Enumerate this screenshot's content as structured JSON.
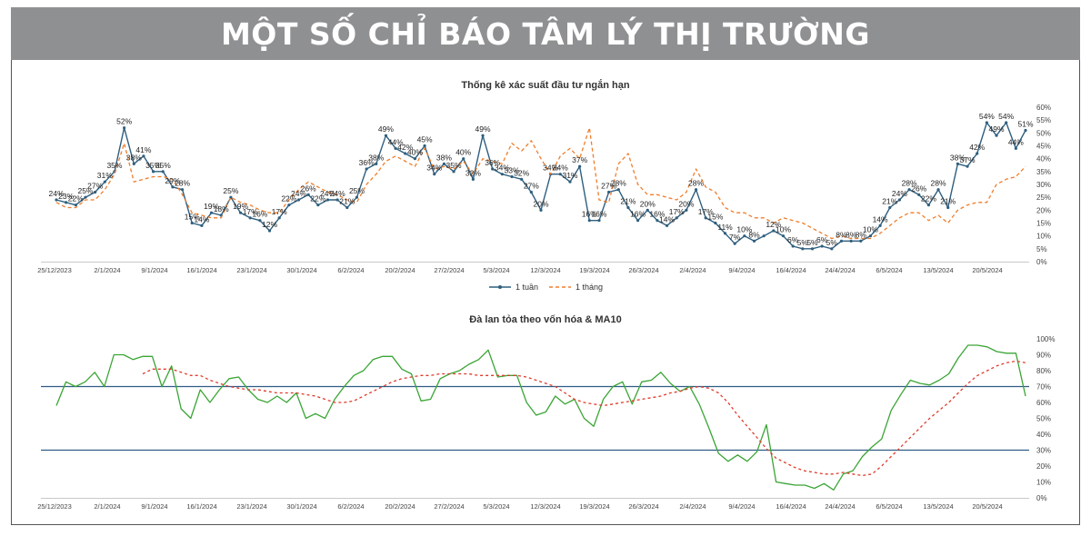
{
  "banner": {
    "title": "MỘT SỐ CHỈ BÁO TÂM LÝ THỊ TRƯỜNG"
  },
  "colors": {
    "banner_bg": "#8f9092",
    "weekly": "#2e5f7f",
    "monthly": "#f07d2a",
    "breadth": "#3aa535",
    "ma10": "#e03a2a",
    "ref_lines": "#2f5c85"
  },
  "chart_data": [
    {
      "type": "line",
      "title": "Thống kê xác suất đầu tư ngắn hạn",
      "x_ticks": [
        "25/12/2023",
        "2/1/2024",
        "9/1/2024",
        "16/1/2024",
        "23/1/2024",
        "30/1/2024",
        "6/2/2024",
        "20/2/2024",
        "27/2/2024",
        "5/3/2024",
        "12/3/2024",
        "19/3/2024",
        "26/3/2024",
        "2/4/2024",
        "9/4/2024",
        "16/4/2024",
        "24/4/2024",
        "6/5/2024",
        "13/5/2024",
        "20/5/2024"
      ],
      "y_ticks": [
        "0%",
        "5%",
        "10%",
        "15%",
        "20%",
        "25%",
        "30%",
        "35%",
        "40%",
        "45%",
        "50%",
        "55%",
        "60%"
      ],
      "ylim": [
        0,
        60
      ],
      "legend": {
        "position": "bottom",
        "weekly": "1 tuần",
        "monthly": "1 tháng"
      },
      "series": [
        {
          "name": "1 tuần",
          "values": [
            24,
            23,
            22,
            25,
            27,
            31,
            35,
            52,
            38,
            41,
            35,
            35,
            29,
            28,
            15,
            14,
            19,
            18,
            25,
            19,
            17,
            16,
            12,
            17,
            22,
            24,
            26,
            22,
            24,
            24,
            21,
            25,
            36,
            38,
            49,
            44,
            42,
            40,
            45,
            34,
            38,
            35,
            40,
            32,
            49,
            36,
            34,
            33,
            32,
            27,
            20,
            34,
            34,
            31,
            37,
            16,
            16,
            27,
            28,
            21,
            16,
            20,
            16,
            14,
            17,
            20,
            28,
            17,
            15,
            11,
            7,
            10,
            8,
            10,
            12,
            10,
            6,
            5,
            5,
            6,
            5,
            8,
            8,
            8,
            10,
            14,
            21,
            24,
            28,
            26,
            22,
            28,
            21,
            38,
            37,
            42,
            54,
            49,
            54,
            44,
            51
          ]
        },
        {
          "name": "1 tháng",
          "values": [
            23,
            21,
            21,
            24,
            24,
            28,
            34,
            46,
            31,
            32,
            33,
            33,
            32,
            26,
            19,
            18,
            17,
            17,
            25,
            23,
            22,
            20,
            19,
            19,
            24,
            28,
            31,
            29,
            27,
            26,
            24,
            23,
            30,
            34,
            39,
            41,
            39,
            37,
            44,
            36,
            37,
            36,
            39,
            34,
            40,
            39,
            38,
            46,
            43,
            47,
            40,
            34,
            41,
            44,
            40,
            52,
            24,
            23,
            38,
            42,
            30,
            26,
            26,
            25,
            24,
            27,
            36,
            29,
            27,
            21,
            19,
            19,
            17,
            17,
            15,
            17,
            16,
            15,
            13,
            11,
            9,
            10,
            9,
            9,
            9,
            11,
            14,
            17,
            19,
            19,
            16,
            18,
            15,
            20,
            22,
            23,
            23,
            30,
            32,
            33,
            37
          ]
        }
      ],
      "data_labels": [
        {
          "i": 0,
          "v": 24,
          "text": "24%"
        },
        {
          "i": 1,
          "v": 23,
          "text": "23%"
        },
        {
          "i": 2,
          "v": 22,
          "text": "22%"
        },
        {
          "i": 3,
          "v": 25,
          "text": "25%"
        },
        {
          "i": 4,
          "v": 27,
          "text": "27%"
        },
        {
          "i": 5,
          "v": 31,
          "text": "31%"
        },
        {
          "i": 6,
          "v": 35,
          "text": "35%"
        },
        {
          "i": 7,
          "v": 52,
          "text": "52%"
        },
        {
          "i": 8,
          "v": 38,
          "text": "38%"
        },
        {
          "i": 9,
          "v": 41,
          "text": "41%"
        },
        {
          "i": 10,
          "v": 35,
          "text": "35%"
        },
        {
          "i": 11,
          "v": 35,
          "text": "35%"
        },
        {
          "i": 12,
          "v": 29,
          "text": "29%"
        },
        {
          "i": 13,
          "v": 28,
          "text": "28%"
        },
        {
          "i": 14,
          "v": 15,
          "text": "15%"
        },
        {
          "i": 15,
          "v": 14,
          "text": "14%"
        },
        {
          "i": 16,
          "v": 19,
          "text": "19%"
        },
        {
          "i": 17,
          "v": 18,
          "text": "18%"
        },
        {
          "i": 18,
          "v": 25,
          "text": "25%"
        },
        {
          "i": 19,
          "v": 19,
          "text": "19%"
        },
        {
          "i": 20,
          "v": 17,
          "text": "17%"
        },
        {
          "i": 21,
          "v": 16,
          "text": "16%"
        },
        {
          "i": 22,
          "v": 12,
          "text": "12%"
        },
        {
          "i": 23,
          "v": 17,
          "text": "17%"
        },
        {
          "i": 24,
          "v": 22,
          "text": "22%"
        },
        {
          "i": 25,
          "v": 24,
          "text": "24%"
        },
        {
          "i": 26,
          "v": 26,
          "text": "26%"
        },
        {
          "i": 27,
          "v": 22,
          "text": "22%"
        },
        {
          "i": 28,
          "v": 24,
          "text": "24%"
        },
        {
          "i": 29,
          "v": 24,
          "text": "24%"
        },
        {
          "i": 30,
          "v": 21,
          "text": "21%"
        },
        {
          "i": 31,
          "v": 25,
          "text": "25%"
        },
        {
          "i": 32,
          "v": 36,
          "text": "36%"
        },
        {
          "i": 33,
          "v": 38,
          "text": "38%"
        },
        {
          "i": 34,
          "v": 49,
          "text": "49%"
        },
        {
          "i": 35,
          "v": 44,
          "text": "44%"
        },
        {
          "i": 36,
          "v": 42,
          "text": "42%"
        },
        {
          "i": 37,
          "v": 40,
          "text": "40%"
        },
        {
          "i": 38,
          "v": 45,
          "text": "45%"
        },
        {
          "i": 39,
          "v": 34,
          "text": "34%"
        },
        {
          "i": 40,
          "v": 38,
          "text": "38%"
        },
        {
          "i": 41,
          "v": 35,
          "text": "35%"
        },
        {
          "i": 42,
          "v": 40,
          "text": "40%"
        },
        {
          "i": 43,
          "v": 32,
          "text": "32%"
        },
        {
          "i": 44,
          "v": 49,
          "text": "49%"
        },
        {
          "i": 45,
          "v": 36,
          "text": "36%"
        },
        {
          "i": 46,
          "v": 34,
          "text": "34%"
        },
        {
          "i": 47,
          "v": 33,
          "text": "33%"
        },
        {
          "i": 48,
          "v": 32,
          "text": "32%"
        },
        {
          "i": 49,
          "v": 27,
          "text": "27%"
        },
        {
          "i": 50,
          "v": 20,
          "text": "20%"
        },
        {
          "i": 51,
          "v": 34,
          "text": "34%"
        },
        {
          "i": 52,
          "v": 34,
          "text": "34%"
        },
        {
          "i": 53,
          "v": 31,
          "text": "31%"
        },
        {
          "i": 54,
          "v": 37,
          "text": "37%"
        },
        {
          "i": 55,
          "v": 16,
          "text": "16%"
        },
        {
          "i": 56,
          "v": 16,
          "text": "16%"
        },
        {
          "i": 57,
          "v": 27,
          "text": "27%"
        },
        {
          "i": 58,
          "v": 28,
          "text": "28%"
        },
        {
          "i": 59,
          "v": 21,
          "text": "21%"
        },
        {
          "i": 60,
          "v": 16,
          "text": "16%"
        },
        {
          "i": 61,
          "v": 20,
          "text": "20%"
        },
        {
          "i": 62,
          "v": 16,
          "text": "16%"
        },
        {
          "i": 63,
          "v": 14,
          "text": "14%"
        },
        {
          "i": 64,
          "v": 17,
          "text": "17%"
        },
        {
          "i": 65,
          "v": 20,
          "text": "20%"
        },
        {
          "i": 66,
          "v": 28,
          "text": "28%"
        },
        {
          "i": 67,
          "v": 17,
          "text": "17%"
        },
        {
          "i": 68,
          "v": 15,
          "text": "15%"
        },
        {
          "i": 69,
          "v": 11,
          "text": "11%"
        },
        {
          "i": 70,
          "v": 7,
          "text": "7%"
        },
        {
          "i": 71,
          "v": 10,
          "text": "10%"
        },
        {
          "i": 72,
          "v": 8,
          "text": "8%"
        },
        {
          "i": 74,
          "v": 12,
          "text": "12%"
        },
        {
          "i": 75,
          "v": 10,
          "text": "10%"
        },
        {
          "i": 76,
          "v": 6,
          "text": "6%"
        },
        {
          "i": 77,
          "v": 5,
          "text": "5%"
        },
        {
          "i": 78,
          "v": 5,
          "text": "5%"
        },
        {
          "i": 79,
          "v": 6,
          "text": "6%"
        },
        {
          "i": 80,
          "v": 5,
          "text": "5%"
        },
        {
          "i": 81,
          "v": 8,
          "text": "8%"
        },
        {
          "i": 82,
          "v": 8,
          "text": "8%"
        },
        {
          "i": 83,
          "v": 8,
          "text": "8%"
        },
        {
          "i": 84,
          "v": 10,
          "text": "10%"
        },
        {
          "i": 85,
          "v": 14,
          "text": "14%"
        },
        {
          "i": 86,
          "v": 21,
          "text": "21%"
        },
        {
          "i": 87,
          "v": 24,
          "text": "24%"
        },
        {
          "i": 88,
          "v": 28,
          "text": "28%"
        },
        {
          "i": 89,
          "v": 26,
          "text": "26%"
        },
        {
          "i": 90,
          "v": 22,
          "text": "22%"
        },
        {
          "i": 91,
          "v": 28,
          "text": "28%"
        },
        {
          "i": 92,
          "v": 21,
          "text": "21%"
        },
        {
          "i": 93,
          "v": 38,
          "text": "38%"
        },
        {
          "i": 94,
          "v": 37,
          "text": "37%"
        },
        {
          "i": 95,
          "v": 42,
          "text": "42%"
        },
        {
          "i": 96,
          "v": 54,
          "text": "54%"
        },
        {
          "i": 97,
          "v": 49,
          "text": "49%"
        },
        {
          "i": 98,
          "v": 54,
          "text": "54%"
        },
        {
          "i": 99,
          "v": 44,
          "text": "44%"
        },
        {
          "i": 100,
          "v": 51,
          "text": "51%"
        }
      ]
    },
    {
      "type": "line",
      "title": "Đà lan tỏa theo vốn hóa & MA10",
      "x_ticks": [
        "25/12/2023",
        "2/1/2024",
        "9/1/2024",
        "16/1/2024",
        "23/1/2024",
        "30/1/2024",
        "6/2/2024",
        "20/2/2024",
        "27/2/2024",
        "5/3/2024",
        "12/3/2024",
        "19/3/2024",
        "26/3/2024",
        "2/4/2024",
        "9/4/2024",
        "16/4/2024",
        "24/4/2024",
        "6/5/2024",
        "13/5/2024",
        "20/5/2024"
      ],
      "y_ticks": [
        "0%",
        "10%",
        "20%",
        "30%",
        "40%",
        "50%",
        "60%",
        "70%",
        "80%",
        "90%",
        "100%"
      ],
      "ylim": [
        0,
        100
      ],
      "reference_lines": [
        70,
        30
      ],
      "series": [
        {
          "name": "",
          "values": [
            58,
            73,
            70,
            73,
            79,
            70,
            90,
            90,
            87,
            89,
            89,
            70,
            83,
            56,
            50,
            68,
            60,
            68,
            75,
            76,
            68,
            62,
            60,
            64,
            60,
            66,
            50,
            53,
            50,
            62,
            70,
            77,
            80,
            87,
            89,
            89,
            81,
            78,
            61,
            62,
            75,
            78,
            80,
            84,
            87,
            93,
            76,
            77,
            77,
            60,
            52,
            54,
            64,
            59,
            62,
            50,
            45,
            62,
            70,
            73,
            59,
            73,
            74,
            79,
            72,
            67,
            70,
            59,
            44,
            28,
            23,
            27,
            23,
            29,
            46,
            10,
            9,
            8,
            8,
            6,
            9,
            5,
            15,
            17,
            26,
            32,
            37,
            55,
            65,
            74,
            72,
            71,
            74,
            78,
            88,
            96,
            96,
            95,
            92,
            91,
            91,
            64
          ]
        },
        {
          "name": "",
          "values": [
            null,
            null,
            null,
            null,
            null,
            null,
            null,
            null,
            null,
            78,
            81,
            81,
            81,
            79,
            77,
            77,
            74,
            72,
            70,
            69,
            68,
            68,
            67,
            66,
            66,
            66,
            65,
            64,
            62,
            60,
            60,
            61,
            64,
            67,
            70,
            73,
            75,
            76,
            77,
            77,
            78,
            78,
            78,
            78,
            77,
            77,
            77,
            77,
            77,
            76,
            74,
            72,
            70,
            66,
            62,
            60,
            59,
            58,
            59,
            60,
            61,
            62,
            63,
            64,
            66,
            67,
            69,
            70,
            69,
            66,
            60,
            52,
            45,
            38,
            31,
            25,
            22,
            19,
            17,
            16,
            15,
            15,
            16,
            15,
            14,
            15,
            20,
            26,
            32,
            38,
            44,
            50,
            55,
            60,
            66,
            72,
            77,
            80,
            83,
            85,
            86,
            85
          ]
        }
      ]
    }
  ]
}
